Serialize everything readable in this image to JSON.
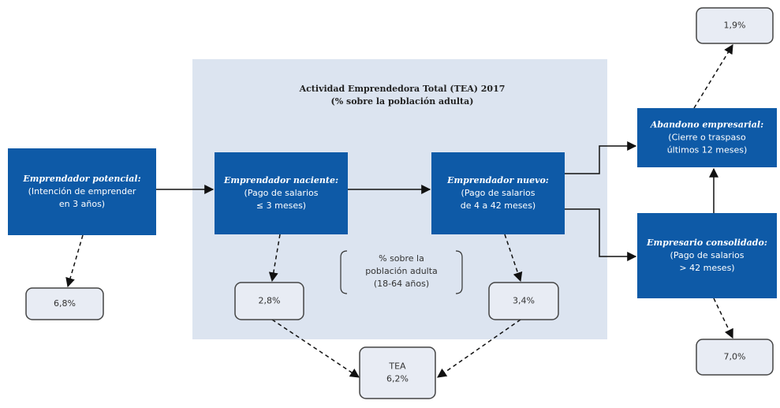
{
  "panel": {
    "title": [
      "Actividad Emprendedora Total (TEA) 2017",
      "(% sobre la población adulta)"
    ]
  },
  "stages": [
    {
      "title": "Emprendador potencial:",
      "lines": [
        "(Intención de emprender",
        "en 3 años)"
      ]
    },
    {
      "title": "Emprendador naciente:",
      "lines": [
        "(Pago de salarios",
        "≤ 3 meses)"
      ]
    },
    {
      "title": "Emprendador nuevo:",
      "lines": [
        "(Pago de salarios",
        "de 4 a 42 meses)"
      ]
    },
    {
      "title": "Abandono empresarial:",
      "lines": [
        "(Cierre o traspaso",
        "últimos 12 meses)"
      ]
    },
    {
      "title": "Empresario consolidado:",
      "lines": [
        "(Pago de salarios",
        "> 42 meses)"
      ]
    }
  ],
  "rates": [
    [
      "6,8%"
    ],
    [
      "2,8%"
    ],
    [
      "3,4%"
    ],
    [
      "TEA",
      "6,2%"
    ],
    [
      "1,9%"
    ],
    [
      "7,0%"
    ]
  ],
  "note": [
    "% sobre la",
    "población adulta",
    "(18-64 años)"
  ]
}
